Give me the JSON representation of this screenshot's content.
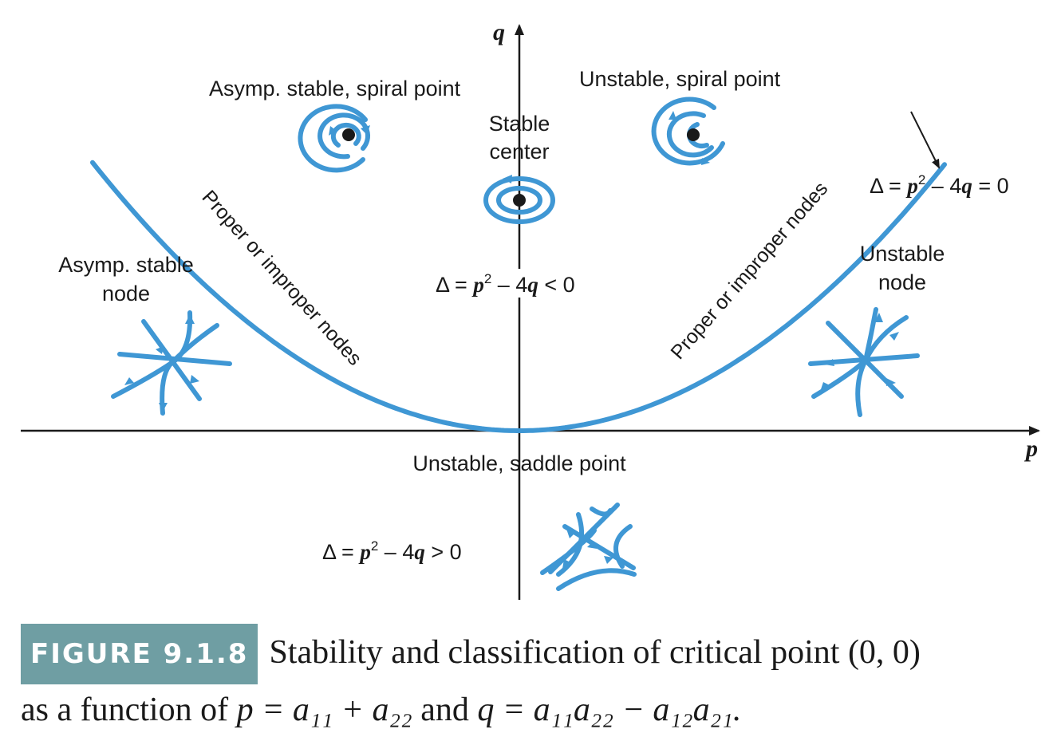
{
  "axes": {
    "x_label": "p",
    "y_label": "q"
  },
  "regions": {
    "spiral_stable": "Asymp. stable, spiral point",
    "spiral_unstable": "Unstable, spiral point",
    "center_line1": "Stable",
    "center_line2": "center",
    "node_stable_line1": "Asymp. stable",
    "node_stable_line2": "node",
    "node_unstable_line1": "Unstable",
    "node_unstable_line2": "node",
    "saddle": "Unstable, saddle point"
  },
  "curve_labels": {
    "left": "Proper or improper nodes",
    "right": "Proper or improper nodes"
  },
  "equations": {
    "parabola": {
      "delta": "Δ = ",
      "p": "p",
      "rest1": "2",
      "rest2": " – 4",
      "q": "q",
      "rel": " = 0"
    },
    "inside": {
      "delta": "Δ = ",
      "p": "p",
      "rest1": "2",
      "rest2": " – 4",
      "q": "q",
      "rel": " < 0"
    },
    "below": {
      "delta": "Δ = ",
      "p": "p",
      "rest1": "2",
      "rest2": " – 4",
      "q": "q",
      "rel": " > 0"
    }
  },
  "colors": {
    "curve": "#3f97d4",
    "caption_label_bg": "#6f9ea3"
  },
  "caption": {
    "label": "FIGURE 9.1.8",
    "text_part1": "Stability and classification of critical point (0, 0)",
    "text_part2": "as a function of",
    "formula_p": "p = a₁₁ + a₂₂",
    "text_and": "and",
    "formula_q": "q = a₁₁a₂₂ − a₁₂a₂₁."
  }
}
